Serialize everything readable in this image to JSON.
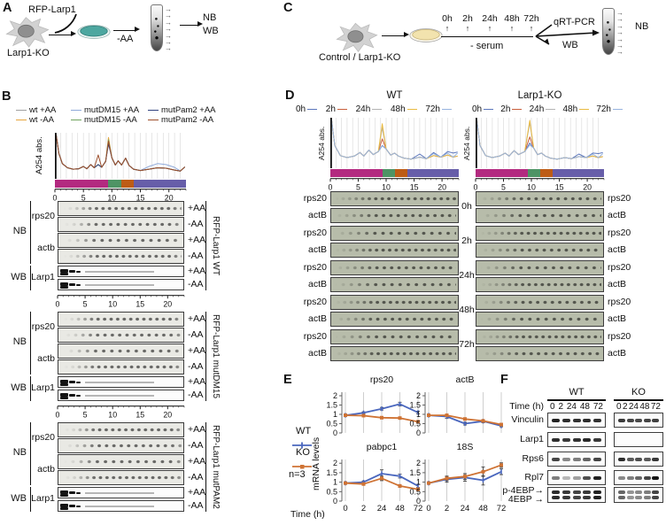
{
  "icons": {
    "right_arrow": "→",
    "up_arrow": "↑"
  },
  "panel_a": {
    "label": "A",
    "construct": "RFP-Larp1",
    "cell": "Larp1-KO",
    "treatment": "-AA",
    "out1": "NB",
    "out2": "WB"
  },
  "panel_c": {
    "label": "C",
    "cell": "Control / Larp1-KO",
    "timepoints": [
      "0h",
      "2h",
      "24h",
      "48h",
      "72h"
    ],
    "treatment": "- serum",
    "qpcr": "qRT-PCR",
    "wb": "WB",
    "nb": "NB"
  },
  "panel_b": {
    "label": "B",
    "ylabel": "A254 abs.",
    "xticks": [
      0,
      5,
      10,
      15,
      20
    ],
    "xmax": 23,
    "legend_rows": [
      [
        {
          "label": "wt +AA",
          "color": "#a0a0a0"
        },
        {
          "label": "mutDM15 +AA",
          "color": "#8fa9d9"
        },
        {
          "label": "mutPam2 +AA",
          "color": "#31427f"
        }
      ],
      [
        {
          "label": "wt  -AA",
          "color": "#e7a63e"
        },
        {
          "label": "mutDM15  -AA",
          "color": "#71a35f"
        },
        {
          "label": "mutPam2  -AA",
          "color": "#9d4f2c"
        }
      ]
    ],
    "fraction_colors": [
      "#b32a80",
      "#4e9465",
      "#bd5c16",
      "#675ea9"
    ],
    "fraction_widths": [
      40.5,
      10,
      9.5,
      40
    ],
    "nb_label": "NB",
    "wb_label": "WB",
    "conds": [
      "+AA",
      "-AA"
    ],
    "blocks": [
      {
        "title": "RFP-Larp1 WT",
        "probes": [
          "rps20",
          "actb"
        ],
        "wb_probe": "Larp1"
      },
      {
        "title": "RFP-Larp1 mutDM15",
        "probes": [
          "rps20",
          "actb"
        ],
        "wb_probe": "Larp1"
      },
      {
        "title": "RFP-Larp1 mutPAM2",
        "probes": [
          "rps20",
          "actb"
        ],
        "wb_probe": "Larp1"
      }
    ],
    "profile": {
      "xmax": 23,
      "base": [
        [
          0.2,
          0.97
        ],
        [
          0.7,
          0.55
        ],
        [
          1.3,
          0.33
        ],
        [
          2.2,
          0.24
        ],
        [
          3.2,
          0.21
        ],
        [
          4.2,
          0.22
        ],
        [
          5.0,
          0.27
        ],
        [
          5.6,
          0.22
        ],
        [
          6.3,
          0.31
        ],
        [
          6.9,
          0.24
        ],
        [
          7.6,
          0.31
        ],
        [
          8.2,
          0.25
        ],
        [
          8.9,
          0.38
        ],
        [
          9.4,
          0.8
        ],
        [
          10.0,
          0.46
        ],
        [
          10.6,
          0.3
        ],
        [
          11.1,
          0.39
        ],
        [
          11.7,
          0.3
        ],
        [
          12.4,
          0.45
        ],
        [
          13.0,
          0.29
        ],
        [
          13.8,
          0.21
        ],
        [
          15.0,
          0.18
        ],
        [
          16.5,
          0.21
        ],
        [
          18.0,
          0.24
        ],
        [
          19.5,
          0.23
        ],
        [
          21.0,
          0.19
        ],
        [
          22.0,
          0.17
        ],
        [
          22.8,
          0.26
        ]
      ],
      "series": [
        {
          "name": "wt +AA",
          "color": "#a0a0a0",
          "tweaks": []
        },
        {
          "name": "wt -AA",
          "color": "#e7a63e",
          "tweaks": [
            [
              13,
              0.9
            ]
          ]
        },
        {
          "name": "mutDM15 +AA",
          "color": "#8fa9d9",
          "tweaks": [
            [
              22,
              0.27
            ],
            [
              23,
              0.33
            ],
            [
              24,
              0.31
            ],
            [
              25,
              0.25
            ]
          ]
        },
        {
          "name": "mutDM15 -AA",
          "color": "#71a35f",
          "tweaks": [
            [
              13,
              0.85
            ]
          ]
        },
        {
          "name": "mutPam2 +AA",
          "color": "#31427f",
          "tweaks": [
            [
              13,
              0.76
            ]
          ]
        },
        {
          "name": "mutPam2 -AA",
          "color": "#9d4f2c",
          "tweaks": [
            [
              10,
              0.52
            ],
            [
              13,
              0.82
            ]
          ]
        }
      ]
    }
  },
  "panel_d": {
    "label": "D",
    "columns": [
      {
        "title": "WT",
        "key": "wt"
      },
      {
        "title": "Larp1-KO",
        "key": "ko"
      }
    ],
    "legend": [
      {
        "label": "0h",
        "color": "#5b76bc"
      },
      {
        "label": "2h",
        "color": "#c95f3b"
      },
      {
        "label": "24h",
        "color": "#b4b4b4"
      },
      {
        "label": "48h",
        "color": "#e9ba41"
      },
      {
        "label": "72h",
        "color": "#97b4df"
      }
    ],
    "ylabel": "A254 abs.",
    "xticks": [
      0,
      5,
      10,
      15,
      20
    ],
    "xmax": 23,
    "timepoints": [
      "0h",
      "2h",
      "24h",
      "48h",
      "72h"
    ],
    "row_labels": [
      "rps20",
      "actB"
    ],
    "fraction_colors": [
      "#b32a80",
      "#4e9465",
      "#bd5c16",
      "#675ea9"
    ],
    "fraction_widths": [
      40.5,
      10,
      9.5,
      40
    ],
    "profiles": {
      "wt": {
        "xmax": 23,
        "base": [
          [
            0.2,
            0.97
          ],
          [
            0.8,
            0.45
          ],
          [
            1.8,
            0.25
          ],
          [
            3.0,
            0.21
          ],
          [
            4.3,
            0.24
          ],
          [
            5.3,
            0.31
          ],
          [
            6.0,
            0.24
          ],
          [
            6.9,
            0.36
          ],
          [
            7.7,
            0.27
          ],
          [
            8.6,
            0.33
          ],
          [
            9.3,
            0.7
          ],
          [
            10.0,
            0.38
          ],
          [
            10.8,
            0.26
          ],
          [
            11.5,
            0.3
          ],
          [
            12.2,
            0.24
          ],
          [
            13.2,
            0.2
          ],
          [
            14.5,
            0.18
          ],
          [
            16.0,
            0.22
          ],
          [
            17.2,
            0.19
          ],
          [
            18.5,
            0.25
          ],
          [
            19.8,
            0.22
          ],
          [
            21.0,
            0.26
          ],
          [
            22.0,
            0.22
          ],
          [
            22.8,
            0.24
          ]
        ],
        "series": [
          {
            "name": "0h",
            "color": "#5b76bc",
            "tweaks": [
              [
                10,
                0.45
              ],
              [
                17,
                0.28
              ],
              [
                19,
                0.31
              ],
              [
                21,
                0.33
              ],
              [
                22,
                0.3
              ],
              [
                23,
                0.32
              ]
            ]
          },
          {
            "name": "2h",
            "color": "#c95f3b",
            "tweaks": [
              [
                10,
                0.58
              ]
            ]
          },
          {
            "name": "24h",
            "color": "#b4b4b4",
            "tweaks": [
              [
                10,
                0.8
              ]
            ]
          },
          {
            "name": "48h",
            "color": "#e9ba41",
            "tweaks": [
              [
                10,
                0.88
              ]
            ]
          },
          {
            "name": "72h",
            "color": "#97b4df",
            "tweaks": [
              [
                10,
                0.44
              ],
              [
                19,
                0.29
              ],
              [
                21,
                0.3
              ],
              [
                23,
                0.3
              ]
            ]
          }
        ]
      },
      "ko": {
        "xmax": 23,
        "base": [
          [
            0.2,
            0.97
          ],
          [
            0.8,
            0.45
          ],
          [
            1.8,
            0.25
          ],
          [
            3.0,
            0.21
          ],
          [
            4.3,
            0.24
          ],
          [
            5.3,
            0.3
          ],
          [
            6.0,
            0.24
          ],
          [
            6.9,
            0.35
          ],
          [
            7.7,
            0.27
          ],
          [
            8.8,
            0.33
          ],
          [
            9.7,
            0.72
          ],
          [
            10.4,
            0.4
          ],
          [
            11.1,
            0.27
          ],
          [
            11.8,
            0.3
          ],
          [
            12.5,
            0.24
          ],
          [
            13.4,
            0.2
          ],
          [
            14.6,
            0.18
          ],
          [
            16.0,
            0.21
          ],
          [
            17.2,
            0.19
          ],
          [
            18.5,
            0.23
          ],
          [
            19.8,
            0.21
          ],
          [
            21.0,
            0.24
          ],
          [
            22.0,
            0.21
          ],
          [
            22.8,
            0.23
          ]
        ],
        "series": [
          {
            "name": "0h",
            "color": "#5b76bc",
            "tweaks": [
              [
                10,
                0.5
              ],
              [
                19,
                0.28
              ],
              [
                21,
                0.3
              ],
              [
                22,
                0.29
              ],
              [
                23,
                0.31
              ]
            ]
          },
          {
            "name": "2h",
            "color": "#c95f3b",
            "tweaks": [
              [
                10,
                0.62
              ]
            ]
          },
          {
            "name": "24h",
            "color": "#b4b4b4",
            "tweaks": [
              [
                10,
                0.9
              ]
            ]
          },
          {
            "name": "48h",
            "color": "#e9ba41",
            "tweaks": [
              [
                10,
                0.95
              ]
            ]
          },
          {
            "name": "72h",
            "color": "#97b4df",
            "tweaks": [
              [
                10,
                0.46
              ],
              [
                21,
                0.28
              ],
              [
                23,
                0.29
              ]
            ]
          }
        ]
      }
    }
  },
  "panel_e": {
    "label": "E",
    "legend": [
      {
        "name": "WT",
        "color": "#4a67be",
        "marker": "tick"
      },
      {
        "name": "KO",
        "color": "#cf7334",
        "marker": "square"
      }
    ],
    "n_label": "n=3",
    "ylabel": "mRNA levels"
  },
  "chart_data": {
    "type": "line",
    "xlabel": "Time (h)",
    "ylabel": "mRNA levels",
    "x_categories": [
      "0",
      "2",
      "24",
      "48",
      "72"
    ],
    "yticks": [
      0,
      0.5,
      1,
      1.5,
      2
    ],
    "ylim": [
      0,
      2.2
    ],
    "legend_position": "left",
    "grid": "vertical",
    "charts": [
      {
        "title": "rps20",
        "series": [
          {
            "name": "WT",
            "color": "#4a67be",
            "marker": "tick",
            "values": [
              0.95,
              1.08,
              1.3,
              1.55,
              1.1
            ],
            "err": [
              0.04,
              0.05,
              0.07,
              0.1,
              0.07
            ]
          },
          {
            "name": "KO",
            "color": "#cf7334",
            "marker": "square",
            "values": [
              0.95,
              0.93,
              0.82,
              0.8,
              0.6
            ],
            "err": [
              0.03,
              0.04,
              0.05,
              0.05,
              0.06
            ]
          }
        ]
      },
      {
        "title": "actB",
        "series": [
          {
            "name": "WT",
            "color": "#4a67be",
            "marker": "tick",
            "values": [
              0.95,
              0.88,
              0.5,
              0.63,
              0.38
            ],
            "err": [
              0.04,
              0.1,
              0.07,
              0.08,
              0.05
            ]
          },
          {
            "name": "KO",
            "color": "#cf7334",
            "marker": "square",
            "values": [
              0.95,
              0.95,
              0.75,
              0.65,
              0.45
            ],
            "err": [
              0.03,
              0.05,
              0.05,
              0.06,
              0.05
            ]
          }
        ]
      },
      {
        "title": "pabpc1",
        "series": [
          {
            "name": "WT",
            "color": "#4a67be",
            "marker": "tick",
            "values": [
              0.95,
              1.0,
              1.45,
              1.32,
              0.8
            ],
            "err": [
              0.04,
              0.06,
              0.2,
              0.1,
              0.08
            ]
          },
          {
            "name": "KO",
            "color": "#cf7334",
            "marker": "square",
            "values": [
              0.95,
              0.9,
              1.2,
              0.8,
              0.62
            ],
            "err": [
              0.04,
              0.05,
              0.12,
              0.07,
              0.06
            ]
          }
        ]
      },
      {
        "title": "18S",
        "series": [
          {
            "name": "WT",
            "color": "#4a67be",
            "marker": "tick",
            "values": [
              0.95,
              1.15,
              1.25,
              1.1,
              1.55
            ],
            "err": [
              0.05,
              0.15,
              0.2,
              0.25,
              0.15
            ]
          },
          {
            "name": "KO",
            "color": "#cf7334",
            "marker": "square",
            "values": [
              0.95,
              1.2,
              1.3,
              1.55,
              1.9
            ],
            "err": [
              0.05,
              0.12,
              0.15,
              0.25,
              0.12
            ]
          }
        ]
      }
    ]
  },
  "panel_f": {
    "label": "F",
    "col_headers": [
      "WT",
      "KO"
    ],
    "time_label": "Time (h)",
    "time_values": [
      "0",
      "2",
      "24",
      "48",
      "72"
    ],
    "rows": [
      {
        "label": "Vinculin",
        "wt": [
          0.95,
          0.9,
          0.88,
          0.9,
          0.88
        ],
        "ko": [
          0.85,
          0.8,
          0.78,
          0.8,
          0.82
        ],
        "doublet": false
      },
      {
        "label": "Larp1",
        "wt": [
          0.9,
          0.85,
          0.88,
          0.92,
          0.85
        ],
        "ko": [
          0,
          0,
          0,
          0,
          0
        ],
        "doublet": false
      },
      {
        "label": "Rps6",
        "wt": [
          0.8,
          0.5,
          0.55,
          0.65,
          0.8
        ],
        "ko": [
          0.9,
          0.7,
          0.75,
          0.7,
          0.85
        ],
        "doublet": false
      },
      {
        "label": "Rpl7",
        "wt": [
          0.55,
          0.3,
          0.4,
          0.75,
          0.95
        ],
        "ko": [
          0.5,
          0.55,
          0.65,
          0.8,
          1
        ],
        "doublet": false
      },
      {
        "label": "p-4EBP→",
        "label2": "4EBP →",
        "wt": [
          0.9,
          0.85,
          0.8,
          0.85,
          0.95
        ],
        "ko": [
          0.65,
          0.45,
          0.5,
          0.55,
          0.8
        ],
        "doublet": true
      }
    ]
  }
}
